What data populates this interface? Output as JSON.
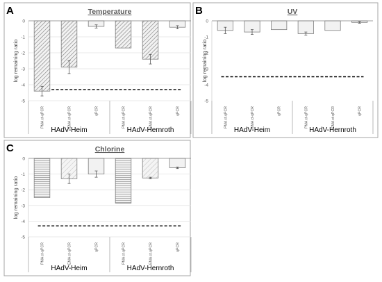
{
  "figure": {
    "groups": [
      "HAdV-Heim",
      "HAdV-Hernroth"
    ],
    "methods": [
      "PMA ct-qPCR",
      "EMA ct-qPCR",
      "qPCR"
    ]
  },
  "chart_data": [
    {
      "type": "bar",
      "panel_letter": "A",
      "title": "Temperature",
      "ylabel": "log remaining ratio",
      "ylim": [
        -5,
        0
      ],
      "yticks": [
        0,
        -1,
        -2,
        -3,
        -4,
        -5
      ],
      "grid": true,
      "categories": [
        "PMA ct-qPCR",
        "EMA ct-qPCR",
        "qPCR",
        "PMA ct-qPCR",
        "EMA ct-qPCR",
        "qPCR"
      ],
      "groups": [
        "HAdV-Heim",
        "HAdV-Hernroth"
      ],
      "values": [
        -4.4,
        -2.9,
        -0.35,
        -1.7,
        -2.4,
        -0.4
      ],
      "errors": [
        0.3,
        0.4,
        0.1,
        0.0,
        0.3,
        0.1
      ],
      "dashed_line": -4.3
    },
    {
      "type": "bar",
      "panel_letter": "B",
      "title": "UV",
      "ylabel": "log remaining ratio",
      "ylim": [
        -5,
        0
      ],
      "yticks": [
        0,
        -1,
        -2,
        -3,
        -4,
        -5
      ],
      "grid": false,
      "categories": [
        "PMA ct-qPCR",
        "EMA ct-qPCR",
        "qPCR",
        "PMA ct-qPCR",
        "EMA ct-qPCR",
        "qPCR"
      ],
      "groups": [
        "HAdV-Heim",
        "HAdV-Hernroth"
      ],
      "values": [
        -0.6,
        -0.7,
        -0.55,
        -0.8,
        -0.6,
        -0.1
      ],
      "errors": [
        0.2,
        0.15,
        0.0,
        0.1,
        0.0,
        0.05
      ],
      "dashed_line": -3.5
    },
    {
      "type": "bar",
      "panel_letter": "C",
      "title": "Chlorine",
      "ylabel": "log remaining ratio",
      "ylim": [
        -5,
        0
      ],
      "yticks": [
        0,
        -1,
        -2,
        -3,
        -4,
        -5
      ],
      "grid": true,
      "categories": [
        "PMA ct-qPCR",
        "EMA ct-qPCR",
        "qPCR",
        "PMA ct-qPCR",
        "EMA ct-qPCR",
        "qPCR"
      ],
      "groups": [
        "HAdV-Heim",
        "HAdV-Hernroth"
      ],
      "values": [
        -2.5,
        -1.3,
        -1.0,
        -2.85,
        -1.25,
        -0.6
      ],
      "errors": [
        0.0,
        0.3,
        0.2,
        0.0,
        0.05,
        0.05
      ],
      "dashed_line": -4.3
    }
  ]
}
